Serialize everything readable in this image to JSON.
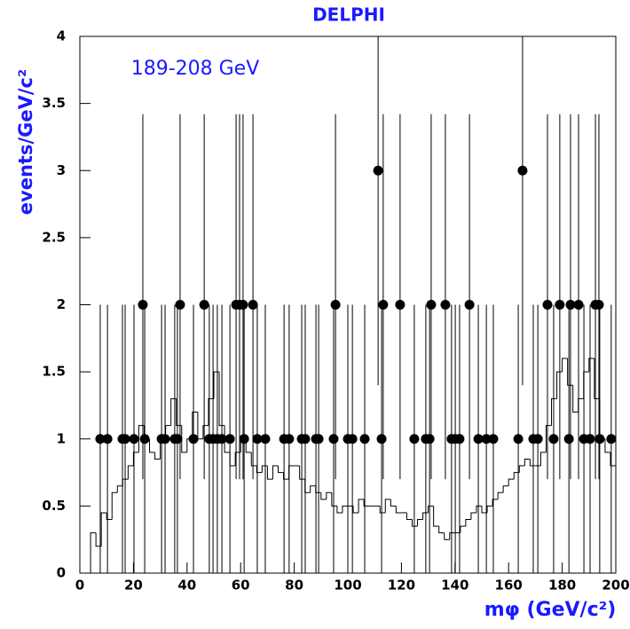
{
  "chart_data": {
    "type": "scatter",
    "title": "DELPHI",
    "annotation": "189-208 GeV",
    "y_label": "events/GeV/c²",
    "x_label": "mφ (GeV/c²)",
    "xlim": [
      0,
      200
    ],
    "ylim": [
      0,
      4
    ],
    "xticks": [
      0,
      20,
      40,
      60,
      80,
      100,
      120,
      140,
      160,
      180,
      200
    ],
    "yticks": [
      0,
      0.5,
      1,
      1.5,
      2,
      2.5,
      3,
      3.5,
      4
    ],
    "color": "#000000",
    "points": {
      "x": [
        7.6,
        10.3,
        15.9,
        16.9,
        20.2,
        24.2,
        30.5,
        31.8,
        35.4,
        36.4,
        42.4,
        48.3,
        49.7,
        51.3,
        53,
        56,
        61.3,
        66.2,
        69.2,
        76.2,
        78.1,
        82.8,
        84.1,
        88.1,
        89.1,
        94.7,
        100,
        101.7,
        106.3,
        112.6,
        124.8,
        129.1,
        130.5,
        138.7,
        140.1,
        141.7,
        148.7,
        151.7,
        154.3,
        163.6,
        169.2,
        170.9,
        176.8,
        182.5,
        188.1,
        190.4,
        194,
        198.3,
        23.5,
        37.4,
        46.4,
        58.3,
        59.6,
        60.9,
        64.6,
        95.4,
        113.2,
        119.5,
        131.1,
        136.4,
        145.4,
        174.5,
        179.1,
        183.1,
        186.1,
        192.4,
        193.7,
        111.3,
        165.2
      ],
      "values": [
        1,
        1,
        1,
        1,
        1,
        1,
        1,
        1,
        1,
        1,
        1,
        1,
        1,
        1,
        1,
        1,
        1,
        1,
        1,
        1,
        1,
        1,
        1,
        1,
        1,
        1,
        1,
        1,
        1,
        1,
        1,
        1,
        1,
        1,
        1,
        1,
        1,
        1,
        1,
        1,
        1,
        1,
        1,
        1,
        1,
        1,
        1,
        1,
        2,
        2,
        2,
        2,
        2,
        2,
        2,
        2,
        2,
        2,
        2,
        2,
        2,
        2,
        2,
        2,
        2,
        2,
        2,
        3,
        3
      ],
      "err_low": [
        1,
        1,
        1,
        1,
        1,
        1,
        1,
        1,
        1,
        1,
        1,
        1,
        1,
        1,
        1,
        1,
        1,
        1,
        1,
        1,
        1,
        1,
        1,
        1,
        1,
        1,
        1,
        1,
        1,
        1,
        1,
        1,
        1,
        1,
        1,
        1,
        1,
        1,
        1,
        1,
        1,
        1,
        1,
        1,
        1,
        1,
        1,
        1,
        1.3,
        1.3,
        1.3,
        1.3,
        1.3,
        1.3,
        1.3,
        1.3,
        1.3,
        1.3,
        1.3,
        1.3,
        1.3,
        1.3,
        1.3,
        1.3,
        1.3,
        1.3,
        1.3,
        1.6,
        1.6
      ],
      "err_high": [
        1,
        1,
        1,
        1,
        1,
        1,
        1,
        1,
        1,
        1,
        1,
        1,
        1,
        1,
        1,
        1,
        1,
        1,
        1,
        1,
        1,
        1,
        1,
        1,
        1,
        1,
        1,
        1,
        1,
        1,
        1,
        1,
        1,
        1,
        1,
        1,
        1,
        1,
        1,
        1,
        1,
        1,
        1,
        1,
        1,
        1,
        1,
        1,
        1.42,
        1.42,
        1.42,
        1.42,
        1.42,
        1.42,
        1.42,
        1.42,
        1.42,
        1.42,
        1.42,
        1.42,
        1.42,
        1.42,
        1.42,
        1.42,
        1.42,
        1.42,
        1.42,
        1.6,
        1.6
      ]
    },
    "histogram": {
      "bins": [
        4,
        6,
        8,
        10,
        12,
        14,
        16,
        18,
        20,
        22,
        24,
        26,
        28,
        30,
        32,
        34,
        36,
        38,
        40,
        42,
        44,
        46,
        48,
        50,
        52,
        54,
        56,
        58,
        60,
        62,
        64,
        66,
        68,
        70,
        72,
        74,
        76,
        78,
        80,
        82,
        84,
        86,
        88,
        90,
        92,
        94,
        96,
        98,
        100,
        102,
        104,
        106,
        108,
        110,
        112,
        114,
        116,
        118,
        120,
        122,
        124,
        126,
        128,
        130,
        132,
        134,
        136,
        138,
        140,
        142,
        144,
        146,
        148,
        150,
        152,
        154,
        156,
        158,
        160,
        162,
        164,
        166,
        168,
        170,
        172,
        174,
        176,
        178,
        180,
        182,
        184,
        186,
        188,
        190,
        192,
        194,
        196,
        198,
        200
      ],
      "values": [
        0.3,
        0.2,
        0.45,
        0.4,
        0.6,
        0.65,
        0.7,
        0.8,
        0.9,
        1.1,
        1.0,
        0.9,
        0.85,
        1.0,
        1.1,
        1.3,
        1.1,
        0.9,
        1.0,
        1.2,
        1.0,
        1.1,
        1.3,
        1.5,
        1.1,
        0.9,
        0.8,
        0.9,
        1.0,
        0.9,
        0.8,
        0.75,
        0.8,
        0.7,
        0.8,
        0.75,
        0.7,
        0.8,
        0.8,
        0.7,
        0.6,
        0.65,
        0.6,
        0.55,
        0.6,
        0.5,
        0.45,
        0.5,
        0.5,
        0.45,
        0.55,
        0.5,
        0.5,
        0.5,
        0.45,
        0.55,
        0.5,
        0.45,
        0.45,
        0.4,
        0.35,
        0.4,
        0.45,
        0.5,
        0.35,
        0.3,
        0.25,
        0.3,
        0.3,
        0.35,
        0.4,
        0.45,
        0.5,
        0.45,
        0.5,
        0.55,
        0.6,
        0.65,
        0.7,
        0.75,
        0.8,
        0.85,
        0.8,
        0.8,
        0.9,
        1.1,
        1.3,
        1.5,
        1.6,
        1.4,
        1.2,
        1.3,
        1.5,
        1.6,
        1.3,
        1.0,
        0.9,
        0.8
      ]
    }
  }
}
